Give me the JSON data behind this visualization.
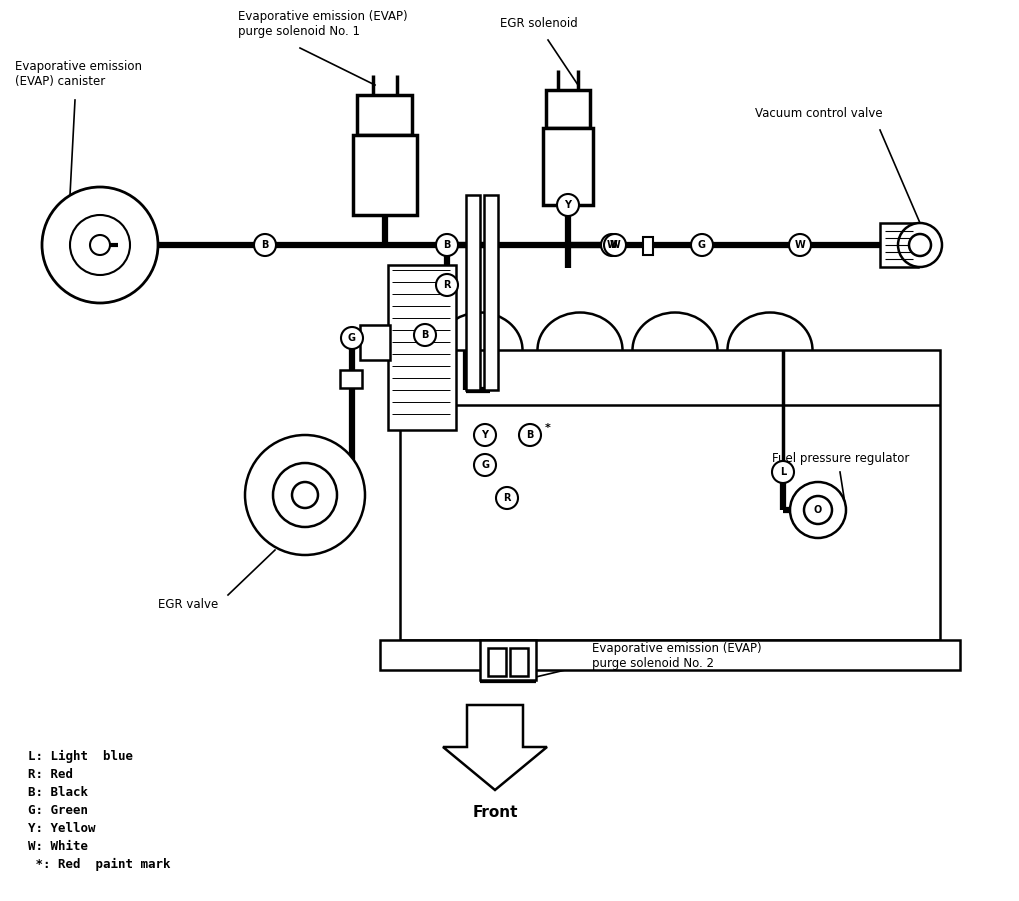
{
  "bg_color": "#ffffff",
  "line_color": "#000000",
  "legend_items": [
    "L: Light  blue",
    "R: Red",
    "B: Black",
    "G: Green",
    "Y: Yellow",
    "W: White",
    " *: Red  paint mark"
  ],
  "labels": {
    "evap_canister": "Evaporative emission\n(EVAP) canister",
    "evap_purge1": "Evaporative emission (EVAP)\npurge solenoid No. 1",
    "egr_solenoid": "EGR solenoid",
    "vacuum_control": "Vacuum control valve",
    "egr_valve": "EGR valve",
    "fuel_pressure": "Fuel pressure regulator",
    "evap_purge2": "Evaporative emission (EVAP)\npurge solenoid No. 2",
    "front": "Front"
  }
}
